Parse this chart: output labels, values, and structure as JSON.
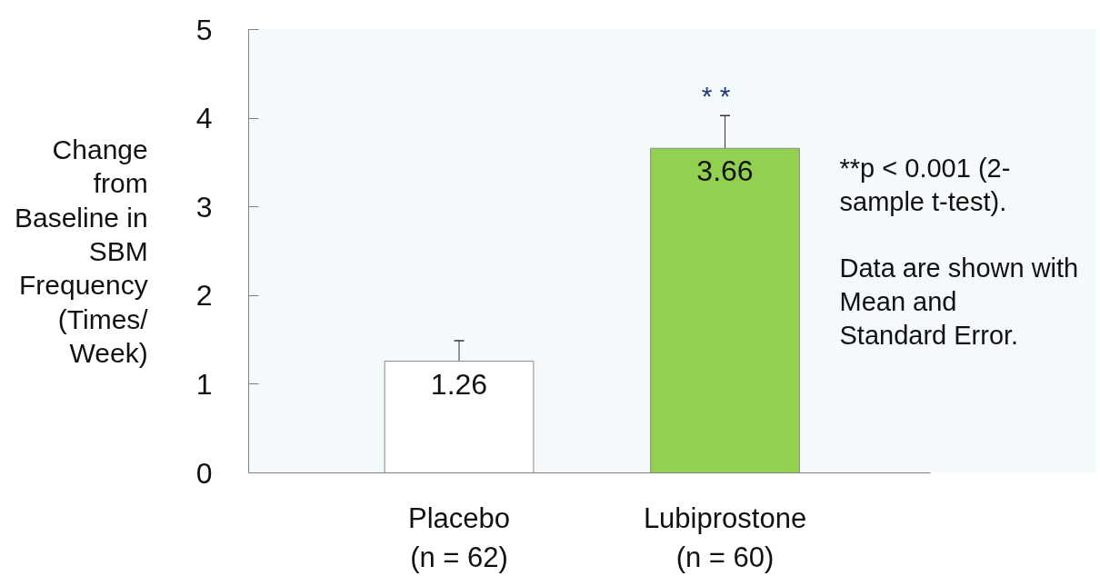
{
  "chart_data": {
    "type": "bar",
    "categories": [
      "Placebo\n(n = 62)",
      "Lubiprostone\n(n = 60)"
    ],
    "values": [
      1.26,
      3.66
    ],
    "colors": [
      "#ffffff",
      "#92d050"
    ],
    "errors": [
      [
        1.26,
        1.49
      ],
      [
        3.66,
        4.03
      ]
    ],
    "data_labels": true,
    "ylabel": "Change\nfrom\nBaseline in\nSBM\nFrequency\n(Times/\nWeek)",
    "ylim": [
      0,
      5
    ],
    "yticks": [
      0,
      1,
      2,
      3,
      4,
      5
    ],
    "grid": false,
    "annotations": [
      "* *",
      "**p < 0.001 (2-\nsample t-test).",
      "Data are shown with\nMean and\nStandard Error."
    ]
  }
}
